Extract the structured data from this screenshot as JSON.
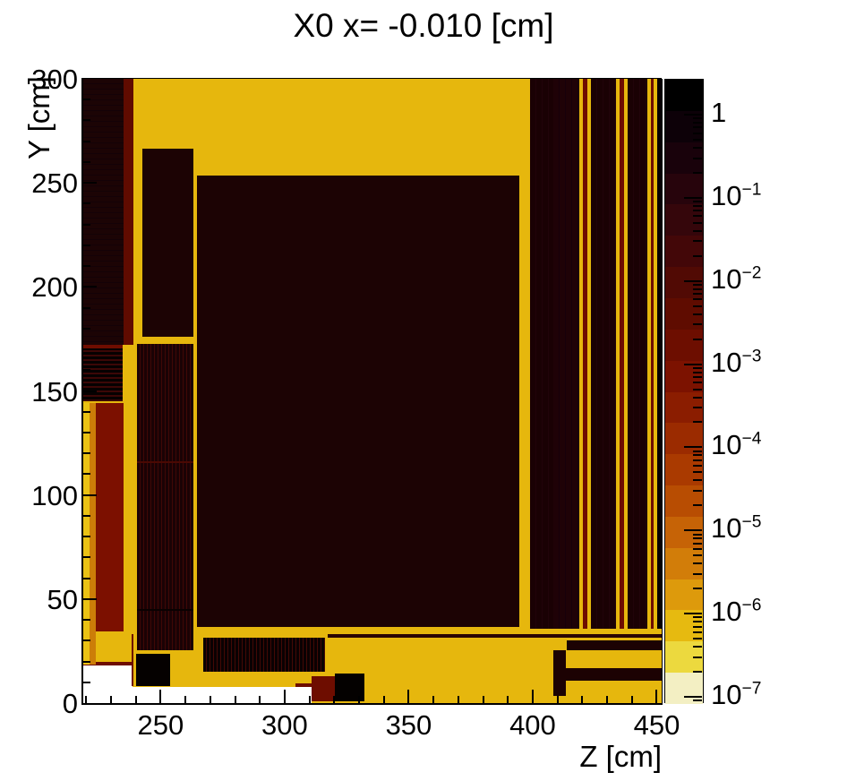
{
  "title": "X0 x= -0.010 [cm]",
  "chart_data": {
    "type": "heatmap",
    "title": "X0 x= -0.010 [cm]",
    "xlabel": "Z [cm]",
    "ylabel": "Y [cm]",
    "x_range": [
      218.8,
      452.0
    ],
    "y_range": [
      0,
      300
    ],
    "z_scale": "log",
    "z_min": 1e-07,
    "z_max": 2.6,
    "grid": false,
    "x_major_ticks": [
      250,
      300,
      350,
      400,
      450
    ],
    "x_minor_step": 10,
    "y_major_ticks": [
      0,
      50,
      100,
      150,
      200,
      250,
      300
    ],
    "y_minor_step": 10,
    "colorbar": {
      "exponents": [
        0,
        -1,
        -2,
        -3,
        -4,
        -5,
        -6,
        -7
      ],
      "band_colors": [
        "#000000",
        "#0d0108",
        "#19020b",
        "#27040c",
        "#35060b",
        "#430708",
        "#510a04",
        "#5f0c00",
        "#6d0e00",
        "#7c1200",
        "#8b1d00",
        "#9b2b00",
        "#aa3a00",
        "#b84d02",
        "#c66306",
        "#d27d09",
        "#dd9a0c",
        "#e6ba10",
        "#ecd93e",
        "#f3efc3"
      ]
    },
    "background_color": "#e6b70d",
    "no_data_color": "#ffffff",
    "regions": [
      {
        "n": "no-data-bottom-left",
        "z": [
          218.8,
          238.7
        ],
        "y": [
          0,
          18.1
        ],
        "f": "#ffffff"
      },
      {
        "n": "no-data-bottom-mid",
        "z": [
          238.7,
          310.9
        ],
        "y": [
          0,
          7.7
        ],
        "f": "#ffffff"
      },
      {
        "n": "maroon-streak",
        "z": [
          218.8,
          238.7
        ],
        "y": [
          18.1,
          19.9
        ],
        "f": "#6e0d00"
      },
      {
        "n": "left-column",
        "z": [
          218.8,
          235.0
        ],
        "y": [
          172.2,
          300
        ],
        "f": "#1c0405",
        "s": {
          "d": "h",
          "c": "#140207",
          "a": 5,
          "b": 1
        }
      },
      {
        "n": "left-maroon-stripe",
        "z": [
          235.0,
          239.0
        ],
        "y": [
          172.2,
          300
        ],
        "f": "#600b00"
      },
      {
        "n": "tall-rect",
        "z": [
          242.6,
          263.2
        ],
        "y": [
          176.0,
          266.4
        ],
        "f": "#1c0304"
      },
      {
        "n": "central-block",
        "z": [
          264.6,
          394.6
        ],
        "y": [
          36.6,
          253.5
        ],
        "f": "#1c0304"
      },
      {
        "n": "left-hstriped-region",
        "z": [
          218.8,
          234.7
        ],
        "y": [
          145.0,
          170.9
        ],
        "f": "#060101",
        "s": {
          "d": "h",
          "c": "#3c0706",
          "a": 3,
          "b": 2
        }
      },
      {
        "n": "left-hstriped-border",
        "z": [
          218.8,
          234.7
        ],
        "y": [
          170.4,
          172.2
        ],
        "f": "#6e0d00"
      },
      {
        "n": "edge-strip-bright",
        "z": [
          218.8,
          221.3
        ],
        "y": [
          18.5,
          144.2
        ],
        "f": "#eac214"
      },
      {
        "n": "edge-strip-orange",
        "z": [
          221.3,
          223.9
        ],
        "y": [
          18.5,
          144.2
        ],
        "f": "#cc7d08"
      },
      {
        "n": "left-maroon-block",
        "z": [
          223.9,
          235.0
        ],
        "y": [
          34.4,
          144.2
        ],
        "f": "#7c1000"
      },
      {
        "n": "vstriped-column",
        "z": [
          240.5,
          263.2
        ],
        "y": [
          25.4,
          172.6
        ],
        "f": "#1a0205",
        "s": {
          "d": "v",
          "c": "#400806",
          "a": 3,
          "b": 1
        }
      },
      {
        "n": "vstriped-column-line1",
        "z": [
          240.5,
          263.2
        ],
        "y": [
          115.5,
          116.4
        ],
        "f": "#4a0903"
      },
      {
        "n": "vstriped-column-line2",
        "z": [
          240.5,
          263.2
        ],
        "y": [
          44.4,
          45.3
        ],
        "f": "#0a0101"
      },
      {
        "n": "thin-vline",
        "z": [
          238.3,
          239.0
        ],
        "y": [
          8.2,
          33.1
        ],
        "f": "#6e0d00"
      },
      {
        "n": "black-square",
        "z": [
          240.1,
          253.8
        ],
        "y": [
          8.2,
          23.7
        ],
        "f": "#050100"
      },
      {
        "n": "bottom-vstriped-band",
        "z": [
          267.2,
          316.3
        ],
        "y": [
          15.1,
          31.4
        ],
        "f": "#0a0102",
        "s": {
          "d": "v",
          "c": "#430905",
          "a": 3,
          "b": 1
        }
      },
      {
        "n": "thin-hline",
        "z": [
          317.4,
          452.0
        ],
        "y": [
          31.4,
          33.1
        ],
        "f": "#2a0503"
      },
      {
        "n": "right-col-1",
        "z": [
          398.9,
          408.3
        ],
        "y": [
          35.7,
          300
        ],
        "f": "#1a0104",
        "s": {
          "d": "v",
          "c": "#21030a",
          "a": 6,
          "b": 1
        }
      },
      {
        "n": "right-col-2",
        "z": [
          408.3,
          418.8
        ],
        "y": [
          35.7,
          300
        ],
        "f": "#1f0207",
        "s": {
          "d": "v",
          "c": "#17000a",
          "a": 6,
          "b": 1
        }
      },
      {
        "n": "right-yellow-1",
        "z": [
          418.8,
          420.2
        ],
        "y": [
          35.7,
          300
        ],
        "f": "#e6b70d"
      },
      {
        "n": "right-maroon-1",
        "z": [
          420.2,
          422.0
        ],
        "y": [
          35.7,
          300
        ],
        "f": "#6e0d00"
      },
      {
        "n": "right-yellow-2",
        "z": [
          422.0,
          423.5
        ],
        "y": [
          35.7,
          300
        ],
        "f": "#e6b70d"
      },
      {
        "n": "right-col-3",
        "z": [
          423.5,
          433.6
        ],
        "y": [
          35.7,
          300
        ],
        "f": "#1a0104",
        "s": {
          "d": "v",
          "c": "#21030a",
          "a": 6,
          "b": 1
        }
      },
      {
        "n": "right-yellow-3",
        "z": [
          433.6,
          435.0
        ],
        "y": [
          35.7,
          300
        ],
        "f": "#e6b70d"
      },
      {
        "n": "right-maroon-2",
        "z": [
          435.0,
          436.8
        ],
        "y": [
          35.7,
          300
        ],
        "f": "#6e0d00"
      },
      {
        "n": "right-yellow-4",
        "z": [
          436.8,
          438.3
        ],
        "y": [
          35.7,
          300
        ],
        "f": "#e6b70d"
      },
      {
        "n": "right-col-4",
        "z": [
          438.3,
          446.2
        ],
        "y": [
          35.7,
          300
        ],
        "f": "#1a0104",
        "s": {
          "d": "v",
          "c": "#21030a",
          "a": 6,
          "b": 1
        }
      },
      {
        "n": "right-yellow-5",
        "z": [
          446.2,
          447.7
        ],
        "y": [
          35.7,
          300
        ],
        "f": "#e6b70d"
      },
      {
        "n": "right-maroon-3",
        "z": [
          447.7,
          448.7
        ],
        "y": [
          35.7,
          300
        ],
        "f": "#6e0d00"
      },
      {
        "n": "right-yellow-6",
        "z": [
          448.7,
          450.2
        ],
        "y": [
          35.7,
          300
        ],
        "f": "#e6b70d"
      },
      {
        "n": "right-black-col",
        "z": [
          450.2,
          452.0
        ],
        "y": [
          35.7,
          300
        ],
        "f": "#060003"
      },
      {
        "n": "br-band-upper",
        "z": [
          413.7,
          452.0
        ],
        "y": [
          25.4,
          30.1
        ],
        "f": "#1c0203"
      },
      {
        "n": "br-band-lower",
        "z": [
          408.3,
          452.0
        ],
        "y": [
          10.8,
          16.8
        ],
        "f": "#1c0203"
      },
      {
        "n": "br-vertical-connector",
        "z": [
          408.3,
          413.4
        ],
        "y": [
          3.4,
          25.4
        ],
        "f": "#1c0203"
      },
      {
        "n": "bottom-maroon-block",
        "z": [
          310.9,
          320.3
        ],
        "y": [
          0.9,
          12.9
        ],
        "f": "#6e0d00"
      },
      {
        "n": "bottom-black-block",
        "z": [
          320.3,
          332.2
        ],
        "y": [
          0.9,
          14.2
        ],
        "f": "#040100"
      },
      {
        "n": "bottom-maroon-sliver",
        "z": [
          304.4,
          310.9
        ],
        "y": [
          7.7,
          9.5
        ],
        "f": "#6e0d00"
      }
    ]
  }
}
